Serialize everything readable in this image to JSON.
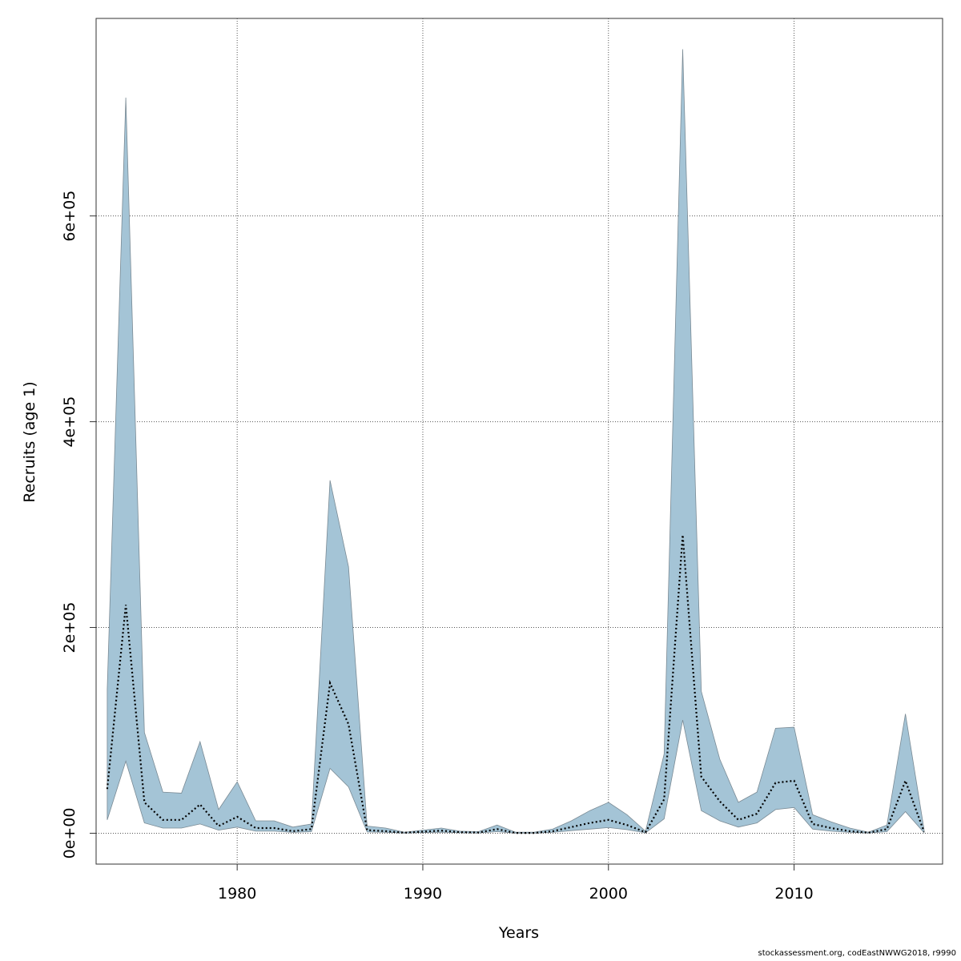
{
  "chart_data": {
    "type": "area",
    "xlabel": "Years",
    "ylabel": "Recruits (age 1)",
    "x_ticks": [
      1980,
      1990,
      2000,
      2010
    ],
    "y_ticks": [
      0,
      200000,
      400000,
      600000
    ],
    "y_tick_labels": [
      "0e+00",
      "2e+05",
      "4e+05",
      "6e+05"
    ],
    "xlim": [
      1972.4,
      2018.0
    ],
    "ylim": [
      -30000,
      792000
    ],
    "grid": true,
    "colors": {
      "band": "#a4c4d6",
      "band_edge": "#7a8a94",
      "line": "#000000"
    },
    "x": [
      1973,
      1974,
      1975,
      1976,
      1977,
      1978,
      1979,
      1980,
      1981,
      1982,
      1983,
      1984,
      1985,
      1986,
      1987,
      1988,
      1989,
      1990,
      1991,
      1992,
      1993,
      1994,
      1995,
      1996,
      1997,
      1998,
      1999,
      2000,
      2001,
      2002,
      2003,
      2004,
      2005,
      2006,
      2007,
      2008,
      2009,
      2010,
      2011,
      2012,
      2013,
      2014,
      2015,
      2016,
      2017
    ],
    "series": [
      {
        "name": "upper",
        "values": [
          140000,
          715000,
          98000,
          40000,
          39000,
          89000,
          23000,
          50000,
          12000,
          12000,
          6000,
          9000,
          343000,
          259000,
          7000,
          5000,
          1000,
          3000,
          5000,
          2000,
          1500,
          8000,
          1000,
          1000,
          4000,
          12000,
          22000,
          30000,
          18000,
          2000,
          77000,
          762000,
          138000,
          72000,
          30000,
          40000,
          102000,
          103000,
          18000,
          11000,
          5000,
          1000,
          8000,
          116000,
          4000
        ]
      },
      {
        "name": "estimate",
        "values": [
          43000,
          222000,
          30000,
          13000,
          13000,
          28000,
          7000,
          16000,
          5000,
          5000,
          2000,
          4000,
          146000,
          106000,
          3000,
          2000,
          500,
          1500,
          2500,
          1000,
          700,
          4000,
          300,
          300,
          2000,
          6000,
          10000,
          13000,
          8000,
          1000,
          33000,
          290000,
          55000,
          31000,
          13000,
          19000,
          49000,
          51000,
          9000,
          5000,
          2000,
          500,
          4000,
          51000,
          1500
        ]
      },
      {
        "name": "lower",
        "values": [
          13000,
          70000,
          10000,
          5000,
          5000,
          9000,
          3000,
          6000,
          2000,
          2000,
          800,
          1500,
          63000,
          45000,
          1200,
          800,
          200,
          600,
          1000,
          400,
          300,
          1500,
          100,
          100,
          800,
          2500,
          4000,
          5500,
          3500,
          400,
          14000,
          110000,
          22000,
          12000,
          6000,
          10000,
          23000,
          25000,
          4000,
          2000,
          800,
          200,
          1500,
          21000,
          600
        ]
      }
    ]
  },
  "footer": "stockassessment.org, codEastNWWG2018, r9990"
}
